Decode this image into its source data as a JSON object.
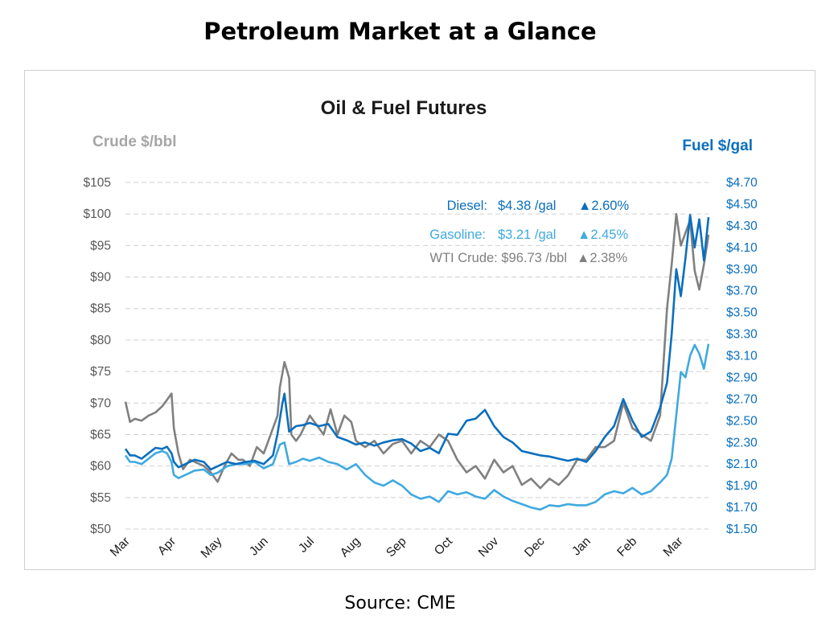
{
  "page_title": "Petroleum Market at a Glance",
  "source": "Source: CME",
  "colors": {
    "crude": "#808080",
    "diesel": "#0b6fbd",
    "gasoline": "#3fa9e0",
    "grid": "#cfcfcf",
    "fuel_axis": "#0b6fbd",
    "crude_axis": "#a6a6a6"
  },
  "chart_data": {
    "type": "line",
    "title": "Oil & Fuel Futures",
    "y_left_label": "Crude $/bbl",
    "y_right_label": "Fuel $/gal",
    "y_left_ticks": [
      "$105",
      "$100",
      "$95",
      "$90",
      "$85",
      "$80",
      "$75",
      "$70",
      "$65",
      "$60",
      "$55",
      "$50"
    ],
    "y_right_ticks": [
      "$4.70",
      "$4.50",
      "$4.30",
      "$4.10",
      "$3.90",
      "$3.70",
      "$3.50",
      "$3.30",
      "$3.10",
      "$2.90",
      "$2.70",
      "$2.50",
      "$2.30",
      "$2.10",
      "$1.90",
      "$1.70",
      "$1.50"
    ],
    "y_left_range": [
      50,
      105
    ],
    "y_right_range": [
      1.5,
      4.7
    ],
    "x_labels": [
      "Mar",
      "Apr",
      "May",
      "Jun",
      "Jul",
      "Aug",
      "Sep",
      "Oct",
      "Nov",
      "Dec",
      "Jan",
      "Feb",
      "Mar"
    ],
    "grid": "horizontal dashed",
    "legend": [
      {
        "label": "Diesel:",
        "price": "$4.38 /gal",
        "change": "▲2.60%"
      },
      {
        "label": "Gasoline:",
        "price": "$3.21 /gal",
        "change": "▲2.45%"
      },
      {
        "label": "WTI Crude: $96.73 /bbl",
        "price": "",
        "change": "▲2.38%"
      }
    ],
    "series": [
      {
        "name": "WTI Crude",
        "axis": "left",
        "x": [
          0,
          0.1,
          0.2,
          0.35,
          0.5,
          0.65,
          0.8,
          0.9,
          1,
          1.05,
          1.15,
          1.25,
          1.4,
          1.55,
          1.7,
          1.85,
          2,
          2.15,
          2.3,
          2.45,
          2.55,
          2.7,
          2.85,
          3,
          3.1,
          3.2,
          3.3,
          3.35,
          3.45,
          3.55,
          3.6,
          3.7,
          3.8,
          3.9,
          4,
          4.1,
          4.2,
          4.3,
          4.45,
          4.6,
          4.75,
          4.9,
          5,
          5.2,
          5.4,
          5.6,
          5.8,
          6,
          6.2,
          6.4,
          6.6,
          6.8,
          7,
          7.2,
          7.4,
          7.6,
          7.8,
          8,
          8.2,
          8.4,
          8.6,
          8.8,
          9,
          9.2,
          9.4,
          9.6,
          9.8,
          10,
          10.2,
          10.4,
          10.6,
          10.8,
          11,
          11.2,
          11.4,
          11.6,
          11.75,
          11.85,
          11.95,
          12.05,
          12.15,
          12.25,
          12.35,
          12.45,
          12.55,
          12.65
        ],
        "values": [
          70.2,
          67,
          67.5,
          67.2,
          68,
          68.5,
          69.5,
          70.5,
          71.5,
          66,
          62,
          59.5,
          61,
          60.5,
          60,
          59,
          57.5,
          60,
          62,
          61,
          61,
          60,
          63,
          62,
          64,
          66,
          68,
          72.5,
          76.5,
          74,
          65,
          64,
          65,
          66.5,
          68,
          67,
          66,
          65,
          69,
          65,
          68,
          67,
          64,
          63,
          64,
          62,
          63.5,
          64,
          62,
          64,
          63,
          65,
          64,
          61,
          59,
          60,
          58,
          61,
          59,
          60,
          57,
          58,
          56.5,
          58,
          57,
          58.5,
          61,
          61,
          63,
          63,
          64,
          70,
          66,
          65,
          64,
          68,
          85,
          92,
          100,
          95,
          97,
          99,
          91,
          88,
          92,
          96.7
        ]
      },
      {
        "name": "Diesel",
        "axis": "right",
        "x": [
          0,
          0.1,
          0.2,
          0.35,
          0.5,
          0.65,
          0.8,
          0.9,
          1,
          1.05,
          1.15,
          1.3,
          1.5,
          1.7,
          1.85,
          2,
          2.2,
          2.4,
          2.6,
          2.8,
          3,
          3.2,
          3.3,
          3.4,
          3.45,
          3.55,
          3.7,
          3.85,
          4,
          4.2,
          4.4,
          4.6,
          4.8,
          5,
          5.2,
          5.4,
          5.6,
          5.8,
          6,
          6.2,
          6.4,
          6.6,
          6.8,
          7,
          7.2,
          7.4,
          7.6,
          7.8,
          8,
          8.2,
          8.4,
          8.6,
          8.8,
          9,
          9.2,
          9.4,
          9.6,
          9.8,
          10,
          10.2,
          10.4,
          10.6,
          10.8,
          11,
          11.2,
          11.4,
          11.6,
          11.75,
          11.85,
          11.95,
          12.05,
          12.15,
          12.25,
          12.35,
          12.45,
          12.55,
          12.65
        ],
        "values": [
          2.24,
          2.18,
          2.18,
          2.15,
          2.2,
          2.25,
          2.24,
          2.26,
          2.2,
          2.12,
          2.07,
          2.1,
          2.14,
          2.12,
          2.05,
          2.08,
          2.12,
          2.1,
          2.12,
          2.13,
          2.1,
          2.18,
          2.38,
          2.65,
          2.75,
          2.4,
          2.45,
          2.46,
          2.48,
          2.45,
          2.47,
          2.35,
          2.32,
          2.28,
          2.3,
          2.27,
          2.3,
          2.32,
          2.33,
          2.29,
          2.22,
          2.25,
          2.2,
          2.38,
          2.37,
          2.5,
          2.52,
          2.6,
          2.45,
          2.35,
          2.3,
          2.22,
          2.2,
          2.18,
          2.17,
          2.15,
          2.13,
          2.15,
          2.12,
          2.22,
          2.35,
          2.45,
          2.7,
          2.5,
          2.35,
          2.4,
          2.62,
          2.85,
          3.3,
          3.9,
          3.65,
          4.0,
          4.4,
          4.1,
          4.36,
          3.98,
          4.38
        ]
      },
      {
        "name": "Gasoline",
        "axis": "right",
        "x": [
          0,
          0.1,
          0.2,
          0.35,
          0.5,
          0.65,
          0.8,
          0.9,
          1,
          1.05,
          1.15,
          1.3,
          1.5,
          1.7,
          1.85,
          2,
          2.2,
          2.4,
          2.6,
          2.8,
          3,
          3.2,
          3.35,
          3.45,
          3.55,
          3.7,
          3.85,
          4,
          4.2,
          4.4,
          4.6,
          4.8,
          5,
          5.2,
          5.4,
          5.6,
          5.8,
          6,
          6.2,
          6.4,
          6.6,
          6.8,
          7,
          7.2,
          7.4,
          7.6,
          7.8,
          8,
          8.2,
          8.4,
          8.6,
          8.8,
          9,
          9.2,
          9.4,
          9.6,
          9.8,
          10,
          10.2,
          10.4,
          10.6,
          10.8,
          11,
          11.2,
          11.4,
          11.6,
          11.75,
          11.85,
          11.95,
          12.05,
          12.15,
          12.25,
          12.35,
          12.45,
          12.55,
          12.65
        ],
        "values": [
          2.18,
          2.12,
          2.12,
          2.1,
          2.15,
          2.2,
          2.22,
          2.2,
          2.12,
          2.0,
          1.97,
          2.0,
          2.04,
          2.05,
          2.0,
          2.02,
          2.08,
          2.1,
          2.1,
          2.12,
          2.06,
          2.1,
          2.28,
          2.3,
          2.1,
          2.12,
          2.15,
          2.13,
          2.16,
          2.12,
          2.1,
          2.05,
          2.1,
          2.0,
          1.93,
          1.9,
          1.95,
          1.9,
          1.82,
          1.78,
          1.8,
          1.75,
          1.85,
          1.82,
          1.84,
          1.8,
          1.78,
          1.86,
          1.8,
          1.76,
          1.73,
          1.7,
          1.68,
          1.72,
          1.71,
          1.73,
          1.72,
          1.72,
          1.75,
          1.82,
          1.85,
          1.83,
          1.88,
          1.82,
          1.85,
          1.93,
          2.0,
          2.15,
          2.55,
          2.95,
          2.9,
          3.1,
          3.2,
          3.12,
          2.98,
          3.21
        ]
      }
    ]
  }
}
